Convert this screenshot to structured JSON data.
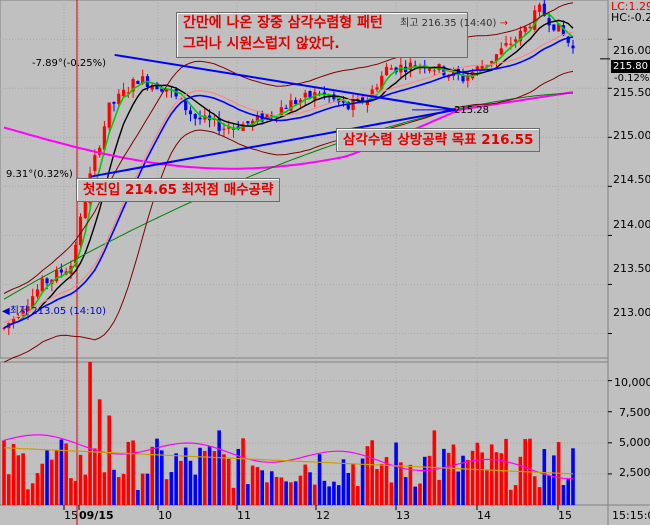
{
  "header": {
    "lc_label": "LC:1.29",
    "hc_label": "HC:-0.2"
  },
  "annotations": {
    "note_line1": "간만에 나온 장중 삼각수렴형 패턴",
    "note_line2": "그러나 시원스럽지 않았다.",
    "breakout_note": "삼각수렴 상방공략 목표 216.55",
    "entry_note": "첫진입 214.65 최저점 매수공략",
    "high_marker": "최고 216.35 (14:40)",
    "low_marker": "최저 213.05 (14:10)",
    "upper_pct": "-7.89°(-0.25%)",
    "lower_pct": "9.31°(0.32%)",
    "level_label": "215.28",
    "current_price": "215.80",
    "current_change": "-0.12%"
  },
  "price_axis": {
    "ticks": [
      "216.00",
      "215.50",
      "215.00",
      "214.50",
      "214.00",
      "213.50",
      "213.00"
    ]
  },
  "volume_axis": {
    "ticks": [
      "10,000",
      "7,500",
      "5,000",
      "2,500"
    ]
  },
  "time_axis": {
    "labels": [
      "15",
      "09/15",
      "10",
      "11",
      "12",
      "13",
      "14",
      "15",
      "15:15:0"
    ]
  },
  "colors": {
    "up": "#ff0000",
    "down": "#0000ff",
    "ma_short": "#00cc00",
    "ma_mid": "#000000",
    "ma_blue": "#0000ff",
    "ma_magenta": "#ff00ff",
    "bollinger": "#800000",
    "trendline": "#0000ff"
  },
  "chart_data": {
    "type": "candlestick",
    "y_range": [
      212.75,
      216.4
    ],
    "volume_range": [
      0,
      11500
    ],
    "upper_trendline": {
      "start": [
        9.45,
        215.84
      ],
      "end": [
        13.75,
        215.28
      ]
    },
    "lower_trendline": {
      "start": [
        9.15,
        214.6
      ],
      "end": [
        13.75,
        215.28
      ]
    },
    "horizontal_level": 215.28
  }
}
